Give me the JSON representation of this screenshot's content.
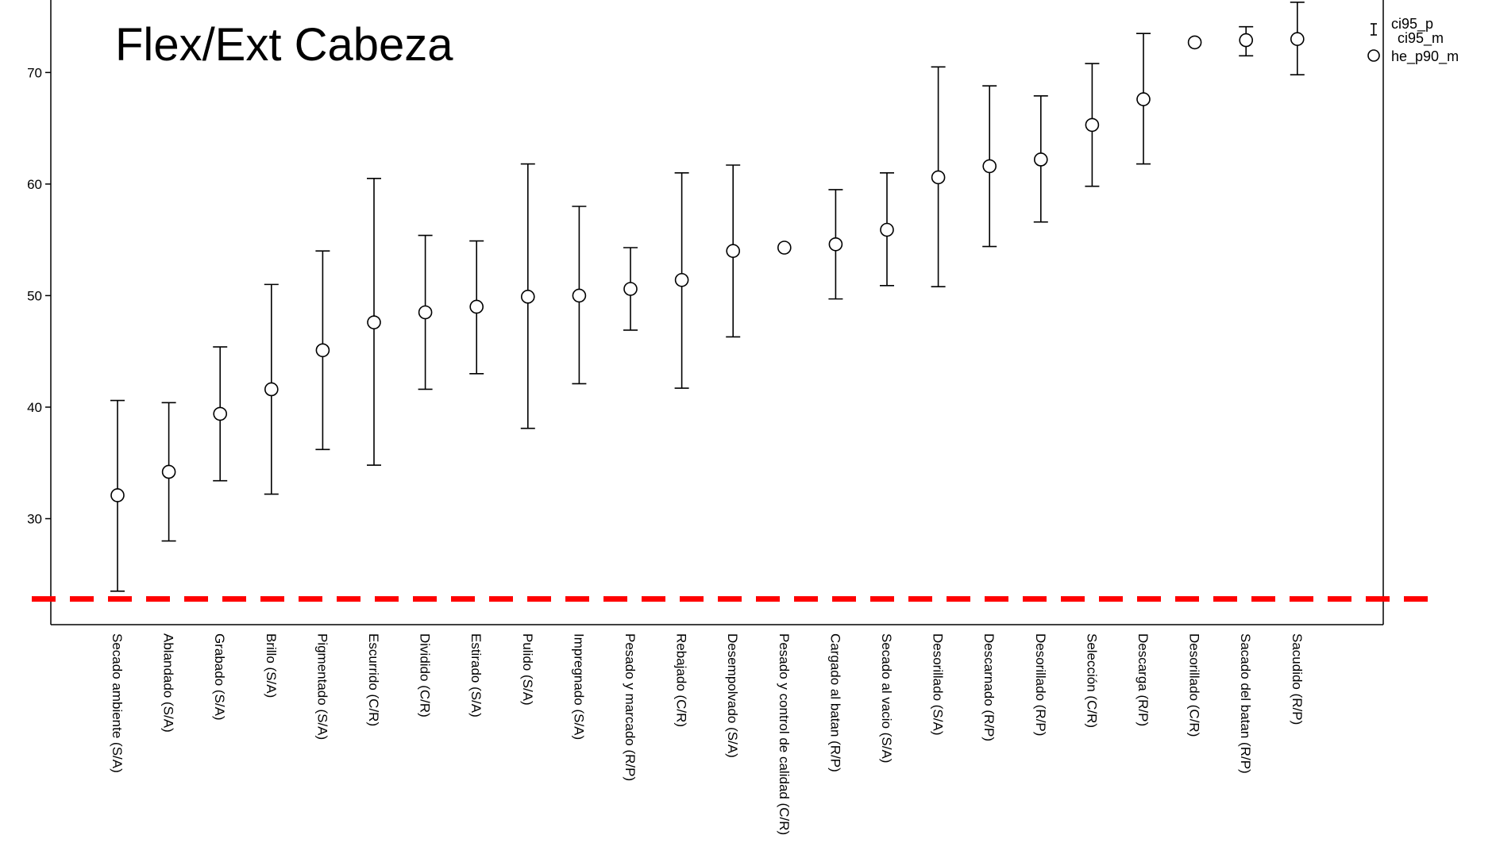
{
  "chart_data": {
    "type": "errorbar",
    "title": "Flex/Ext Cabeza",
    "xlabel": "",
    "ylabel": "",
    "ylim": [
      20.5,
      76.5
    ],
    "yticks": [
      30,
      40,
      50,
      60,
      70
    ],
    "grid": false,
    "legend_position": "top-right",
    "legend": [
      {
        "symbol": "errorbar",
        "label_top": "ci95_p",
        "label_bottom": "ci95_m"
      },
      {
        "symbol": "circle",
        "label": "he_p90_m"
      }
    ],
    "reference_line": {
      "y": 22.8,
      "color": "#ff0000",
      "style": "dashed"
    },
    "categories": [
      "Secado ambiente (S/A)",
      "Ablandado (S/A)",
      "Grabado (S/A)",
      "Brillo (S/A)",
      "Pigmentado (S/A)",
      "Escurrido (C/R)",
      "Dividido (C/R)",
      "Estirado (S/A)",
      "Pulido (S/A)",
      "Impregnado (S/A)",
      "Pesado y marcado (R/P)",
      "Rebajado (C/R)",
      "Desempolvado (S/A)",
      "Pesado y control de calidad (C/R)",
      "Cargado al batan (R/P)",
      "Secado al vacio (S/A)",
      "Desorillado (S/A)",
      "Descarnado (R/P)",
      "Desorillado (R/P)",
      "Selección (C/R)",
      "Descarga (R/P)",
      "Desorillado (C/R)",
      "Sacado del batan (R/P)",
      "Sacudido (R/P)"
    ],
    "series": [
      {
        "name": "he_p90_m",
        "values": [
          32.1,
          34.2,
          39.4,
          41.6,
          45.1,
          47.6,
          48.5,
          49.0,
          49.9,
          50.0,
          50.6,
          51.4,
          54.0,
          54.3,
          54.6,
          55.9,
          60.6,
          61.6,
          62.2,
          65.3,
          67.6,
          72.7,
          72.9,
          73.0
        ]
      },
      {
        "name": "ci95_p",
        "values": [
          40.6,
          40.4,
          45.4,
          51.0,
          54.0,
          60.5,
          55.4,
          54.9,
          61.8,
          58.0,
          54.3,
          61.0,
          61.7,
          null,
          59.5,
          61.0,
          70.5,
          68.8,
          67.9,
          70.8,
          73.5,
          null,
          74.1,
          76.3
        ]
      },
      {
        "name": "ci95_m",
        "values": [
          23.5,
          28.0,
          33.4,
          32.2,
          36.2,
          34.8,
          41.6,
          43.0,
          38.1,
          42.1,
          46.9,
          41.7,
          46.3,
          null,
          49.7,
          50.9,
          50.8,
          54.4,
          56.6,
          59.8,
          61.8,
          null,
          71.5,
          69.8
        ]
      }
    ]
  }
}
